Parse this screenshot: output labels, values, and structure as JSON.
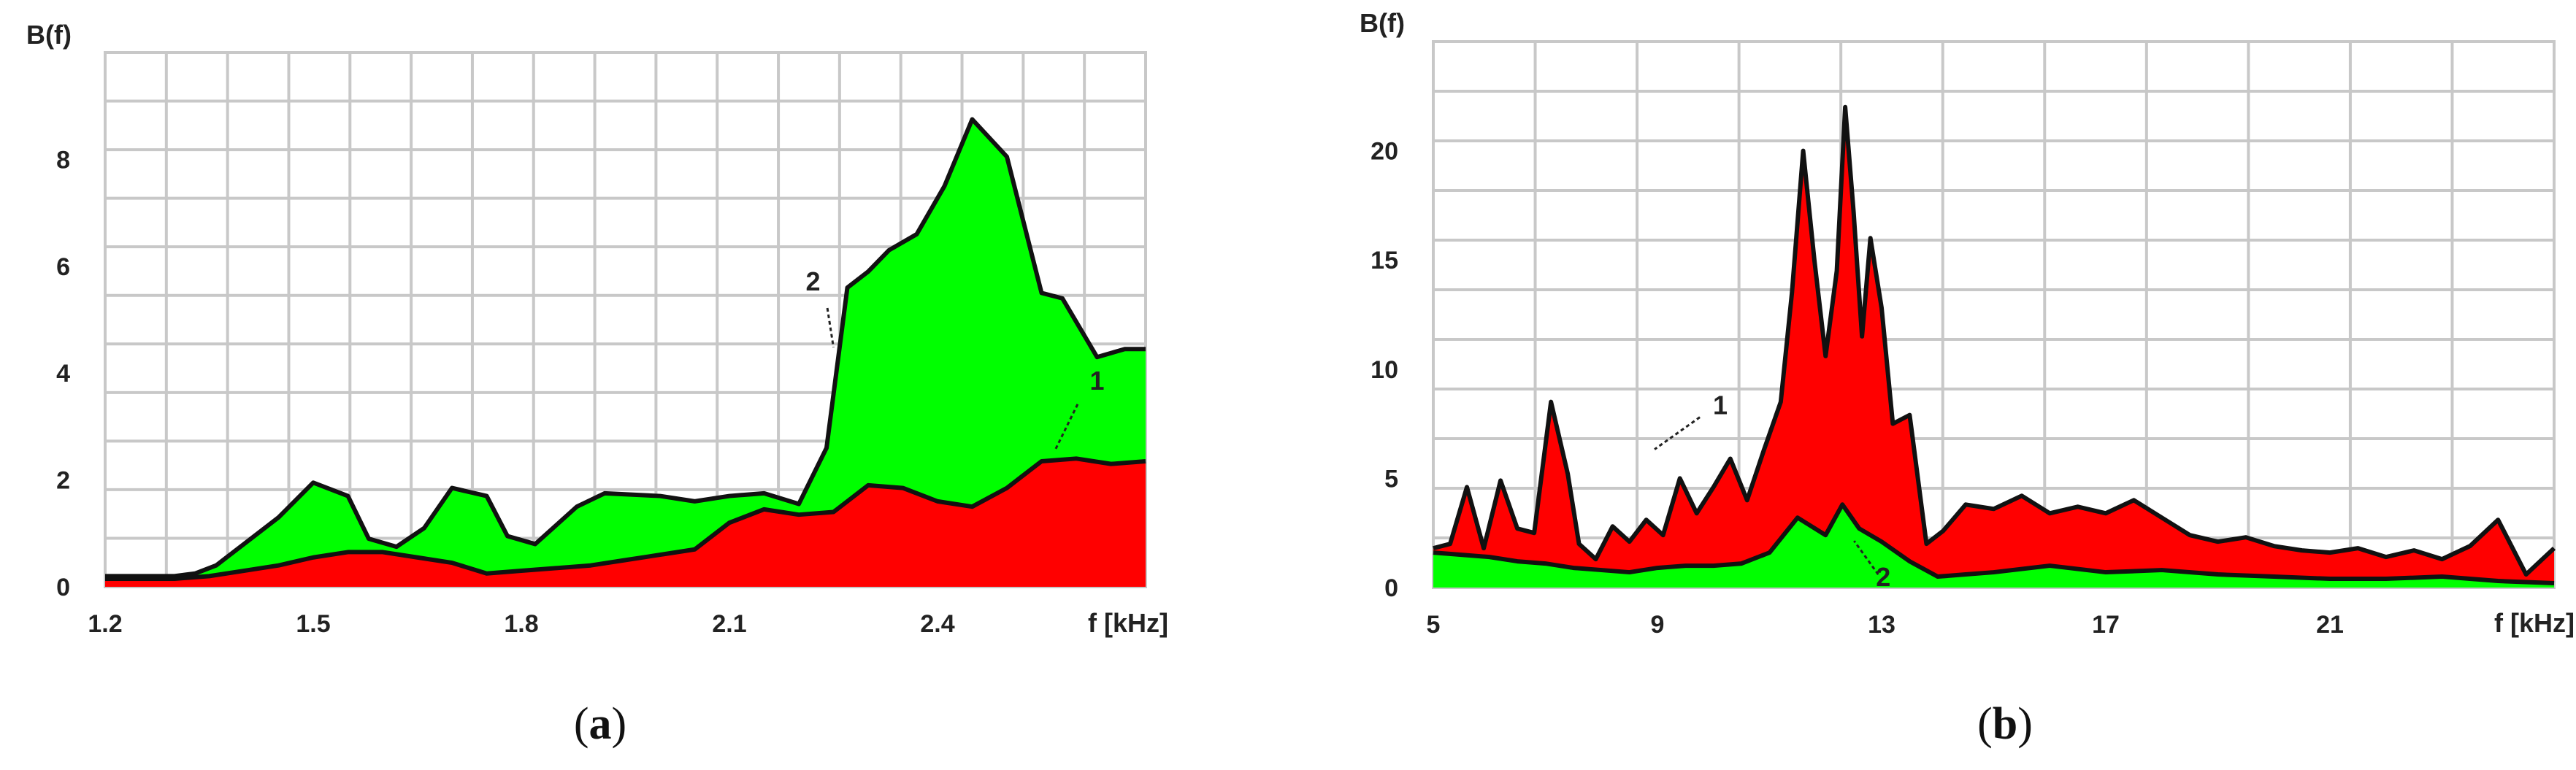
{
  "chart_data": [
    {
      "id": "a",
      "type": "area",
      "caption": "(a)",
      "caption_letter": "a",
      "ylabel": "B(f)",
      "xlabel": "f [kHz]",
      "xlim": [
        1.2,
        2.7
      ],
      "ylim": [
        0,
        10
      ],
      "xticks": [
        1.2,
        1.5,
        1.8,
        2.1,
        2.4
      ],
      "xtick_labels": [
        "1.2",
        "1.5",
        "1.8",
        "2.1",
        "2.4"
      ],
      "yticks": [
        0,
        2,
        4,
        6,
        8
      ],
      "ytick_labels": [
        "0",
        "2",
        "4",
        "6",
        "8"
      ],
      "grid": true,
      "series": [
        {
          "name": "2",
          "color": "#00ff00",
          "x": [
            1.2,
            1.3,
            1.33,
            1.36,
            1.4,
            1.45,
            1.5,
            1.55,
            1.58,
            1.62,
            1.66,
            1.7,
            1.75,
            1.78,
            1.82,
            1.85,
            1.88,
            1.92,
            2.0,
            2.05,
            2.1,
            2.15,
            2.2,
            2.24,
            2.27,
            2.3,
            2.33,
            2.37,
            2.41,
            2.45,
            2.5,
            2.55,
            2.58,
            2.63,
            2.67,
            2.7
          ],
          "y": [
            0.2,
            0.2,
            0.25,
            0.4,
            0.8,
            1.3,
            1.95,
            1.7,
            0.9,
            0.75,
            1.1,
            1.85,
            1.7,
            0.95,
            0.8,
            1.15,
            1.5,
            1.75,
            1.7,
            1.6,
            1.7,
            1.75,
            1.55,
            2.6,
            5.6,
            5.9,
            6.3,
            6.6,
            7.5,
            8.75,
            8.05,
            5.5,
            5.4,
            4.3,
            4.45,
            4.45
          ]
        },
        {
          "name": "1",
          "color": "#ff0000",
          "x": [
            1.2,
            1.3,
            1.35,
            1.4,
            1.45,
            1.5,
            1.55,
            1.6,
            1.65,
            1.7,
            1.75,
            1.8,
            1.85,
            1.9,
            1.95,
            2.0,
            2.05,
            2.1,
            2.15,
            2.2,
            2.25,
            2.3,
            2.35,
            2.4,
            2.45,
            2.5,
            2.55,
            2.6,
            2.65,
            2.7
          ],
          "y": [
            0.15,
            0.15,
            0.2,
            0.3,
            0.4,
            0.55,
            0.65,
            0.65,
            0.55,
            0.45,
            0.25,
            0.3,
            0.35,
            0.4,
            0.5,
            0.6,
            0.7,
            1.2,
            1.45,
            1.35,
            1.4,
            1.9,
            1.85,
            1.6,
            1.5,
            1.85,
            2.35,
            2.4,
            2.3,
            2.35
          ]
        }
      ]
    },
    {
      "id": "b",
      "type": "area",
      "caption": "(b)",
      "caption_letter": "b",
      "ylabel": "B(f)",
      "xlabel": "f [kHz]",
      "xlim": [
        5,
        25
      ],
      "ylim": [
        0,
        25
      ],
      "xticks": [
        5,
        9,
        13,
        17,
        21
      ],
      "xtick_labels": [
        "5",
        "9",
        "13",
        "17",
        "21"
      ],
      "yticks": [
        0,
        5,
        10,
        15,
        20
      ],
      "ytick_labels": [
        "0",
        "5",
        "10",
        "15",
        "20"
      ],
      "grid": true,
      "series": [
        {
          "name": "1",
          "color": "#ff0000",
          "x": [
            5,
            5.3,
            5.6,
            5.9,
            6.2,
            6.5,
            6.8,
            7.1,
            7.4,
            7.6,
            7.9,
            8.2,
            8.5,
            8.8,
            9.1,
            9.4,
            9.7,
            10.0,
            10.3,
            10.6,
            10.9,
            11.2,
            11.4,
            11.6,
            11.8,
            12.0,
            12.2,
            12.35,
            12.5,
            12.65,
            12.8,
            13.0,
            13.2,
            13.5,
            13.8,
            14.1,
            14.5,
            15.0,
            15.5,
            16.0,
            16.5,
            17.0,
            17.5,
            18.0,
            18.5,
            19.0,
            19.5,
            20.0,
            20.5,
            21.0,
            21.5,
            22.0,
            22.5,
            23.0,
            23.5,
            24.0,
            24.5,
            25
          ],
          "y": [
            1.8,
            2.0,
            4.6,
            1.8,
            4.9,
            2.7,
            2.5,
            8.5,
            5.2,
            2.0,
            1.3,
            2.8,
            2.1,
            3.1,
            2.4,
            5.0,
            3.4,
            4.6,
            5.9,
            4.0,
            6.3,
            8.5,
            13.5,
            20.0,
            15.0,
            10.6,
            14.5,
            22.0,
            17.2,
            11.5,
            16.0,
            12.8,
            7.5,
            7.9,
            2.0,
            2.6,
            3.8,
            3.6,
            4.2,
            3.4,
            3.7,
            3.4,
            4.0,
            3.2,
            2.4,
            2.1,
            2.3,
            1.9,
            1.7,
            1.6,
            1.8,
            1.4,
            1.7,
            1.3,
            1.9,
            3.1,
            0.6,
            1.8
          ]
        },
        {
          "name": "2",
          "color": "#00ff00",
          "x": [
            5,
            5.5,
            6,
            6.5,
            7,
            7.5,
            8,
            8.5,
            9,
            9.5,
            10,
            10.5,
            11,
            11.5,
            12,
            12.3,
            12.6,
            13,
            13.5,
            14,
            14.5,
            15,
            16,
            17,
            18,
            19,
            20,
            21,
            22,
            23,
            24,
            25
          ],
          "y": [
            1.6,
            1.5,
            1.4,
            1.2,
            1.1,
            0.9,
            0.8,
            0.7,
            0.9,
            1.0,
            1.0,
            1.1,
            1.6,
            3.2,
            2.4,
            3.8,
            2.7,
            2.1,
            1.2,
            0.5,
            0.6,
            0.7,
            1.0,
            0.7,
            0.8,
            0.6,
            0.5,
            0.4,
            0.4,
            0.5,
            0.3,
            0.2
          ]
        }
      ],
      "curve_labels": [
        {
          "text": "1",
          "x": 9.6,
          "y": 8.0
        },
        {
          "text": "2",
          "x": 12.9,
          "y": 0.8
        }
      ]
    }
  ],
  "panel_a_curve_labels": [
    {
      "text": "2",
      "x": 2.25,
      "y": 5.3
    },
    {
      "text": "1",
      "x": 2.59,
      "y": 3.5
    }
  ]
}
